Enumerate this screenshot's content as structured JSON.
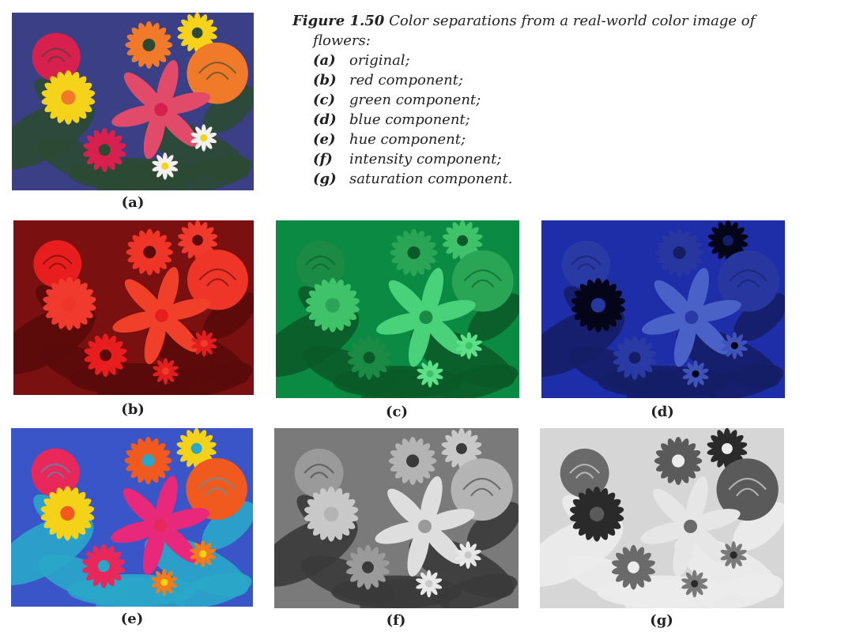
{
  "figure": {
    "label": "Figure 1.50",
    "caption_line1": "Color separations from a real-world color image of",
    "caption_line2": "flowers:",
    "items": [
      {
        "letter": "(a)",
        "text": "original;"
      },
      {
        "letter": "(b)",
        "text": "red component;"
      },
      {
        "letter": "(c)",
        "text": "green component;"
      },
      {
        "letter": "(d)",
        "text": "blue component;"
      },
      {
        "letter": "(e)",
        "text": "hue component;"
      },
      {
        "letter": "(f)",
        "text": "intensity component;"
      },
      {
        "letter": "(g)",
        "text": "saturation component."
      }
    ]
  },
  "panels": [
    {
      "label": "(a)",
      "kind": "original",
      "colors": {
        "bg": "#3a3f86",
        "leaf": "#2c4a33",
        "c1": "#d8204f",
        "c2": "#f4d31a",
        "c3": "#f07a2a",
        "c4": "#e24a6a",
        "c5": "#f5f0f0"
      }
    },
    {
      "label": "(b)",
      "kind": "red",
      "colors": {
        "bg": "#7a1010",
        "leaf": "#5a0a0a",
        "c1": "#e81e1e",
        "c2": "#f03a2e",
        "c3": "#ef3428",
        "c4": "#f0402a",
        "c5": "#e01e1e"
      }
    },
    {
      "label": "(c)",
      "kind": "green",
      "colors": {
        "bg": "#0a8a42",
        "leaf": "#0a5a28",
        "c1": "#1a8a44",
        "c2": "#3fc26a",
        "c3": "#2aa455",
        "c4": "#4ad27a",
        "c5": "#5ee088"
      }
    },
    {
      "label": "(d)",
      "kind": "blue",
      "colors": {
        "bg": "#1e2ea8",
        "leaf": "#141e66",
        "c1": "#2a3aa4",
        "c2": "#05051a",
        "c3": "#2836a0",
        "c4": "#4a62c8",
        "c5": "#3e52b8"
      }
    },
    {
      "label": "(e)",
      "kind": "hue",
      "colors": {
        "bg": "#3a55c8",
        "leaf": "#2aa6c9",
        "c1": "#e8285a",
        "c2": "#f5d21a",
        "c3": "#f05a1e",
        "c4": "#e8287a",
        "c5": "#f57a18"
      }
    },
    {
      "label": "(f)",
      "kind": "intensity",
      "colors": {
        "bg": "#7a7a7a",
        "leaf": "#3a3a3a",
        "c1": "#9a9a9a",
        "c2": "#c8c8c8",
        "c3": "#b4b4b4",
        "c4": "#dedede",
        "c5": "#e8e8e8"
      }
    },
    {
      "label": "(g)",
      "kind": "saturation",
      "colors": {
        "bg": "#d6d6d6",
        "leaf": "#ececec",
        "c1": "#6a6a6a",
        "c2": "#2a2a2a",
        "c3": "#5a5a5a",
        "c4": "#e6e6e6",
        "c5": "#7a7a7a"
      }
    }
  ]
}
